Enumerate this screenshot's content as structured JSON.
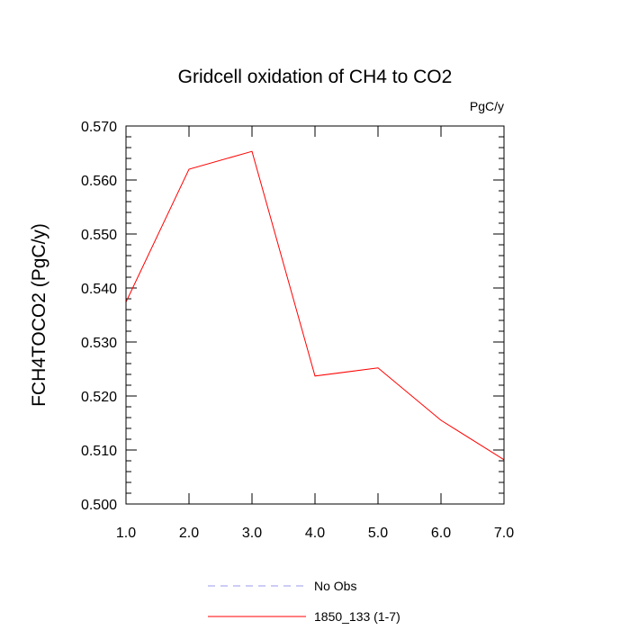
{
  "chart_data": {
    "type": "line",
    "title": "Gridcell oxidation of CH4 to CO2",
    "units": "PgC/y",
    "xlabel": "",
    "ylabel": "FCH4TOCO2  (PgC/y)",
    "xlim": [
      1.0,
      7.0
    ],
    "ylim": [
      0.5,
      0.57
    ],
    "x_ticks": [
      "1.0",
      "2.0",
      "3.0",
      "4.0",
      "5.0",
      "6.0",
      "7.0"
    ],
    "y_ticks": [
      "0.500",
      "0.510",
      "0.520",
      "0.530",
      "0.540",
      "0.550",
      "0.560",
      "0.570"
    ],
    "grid": false,
    "legend_position": "bottom",
    "series": [
      {
        "name": "No Obs",
        "color": "#9999ee",
        "style": "dashed",
        "x": [],
        "y": []
      },
      {
        "name": "1850_133 (1-7)",
        "color": "#ff0000",
        "style": "solid",
        "x": [
          1.0,
          2.0,
          3.0,
          4.0,
          5.0,
          6.0,
          7.0
        ],
        "y": [
          0.5374,
          0.562,
          0.5653,
          0.5237,
          0.5252,
          0.5155,
          0.5082
        ]
      }
    ]
  }
}
